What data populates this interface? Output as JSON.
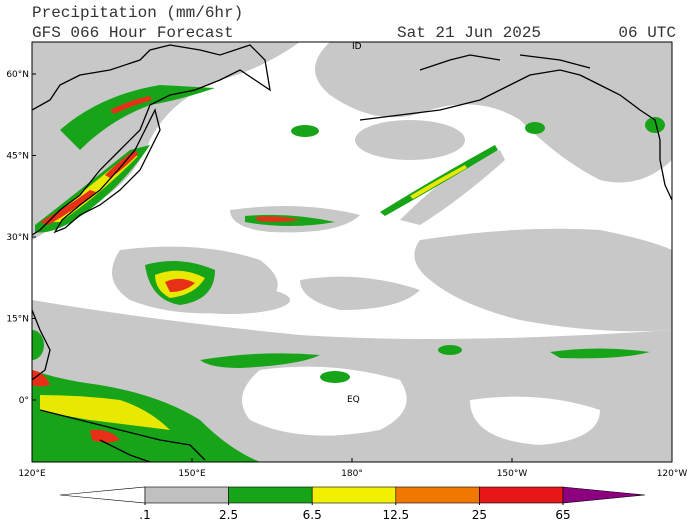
{
  "header": {
    "title": "Precipitation (mm/6hr)",
    "subtitle": "GFS 066 Hour Forecast",
    "date": "Sat 21 Jun 2025",
    "time": "06 UTC"
  },
  "map": {
    "lat_labels": [
      "60°N",
      "45°N",
      "30°N",
      "15°N",
      "0°"
    ],
    "lon_labels": [
      "120°E",
      "150°E",
      "180°",
      "150°W",
      "120°W"
    ],
    "annotations": [
      "ID",
      "EQ"
    ]
  },
  "colorbar": {
    "colors": [
      "#ffffff",
      "#c0c0c0",
      "#18a418",
      "#f0f000",
      "#f07800",
      "#e81818",
      "#8c0080"
    ],
    "levels": [
      {
        "value": 0.1,
        "label": ".1"
      },
      2.5,
      6.5,
      12.5,
      25,
      65
    ]
  }
}
